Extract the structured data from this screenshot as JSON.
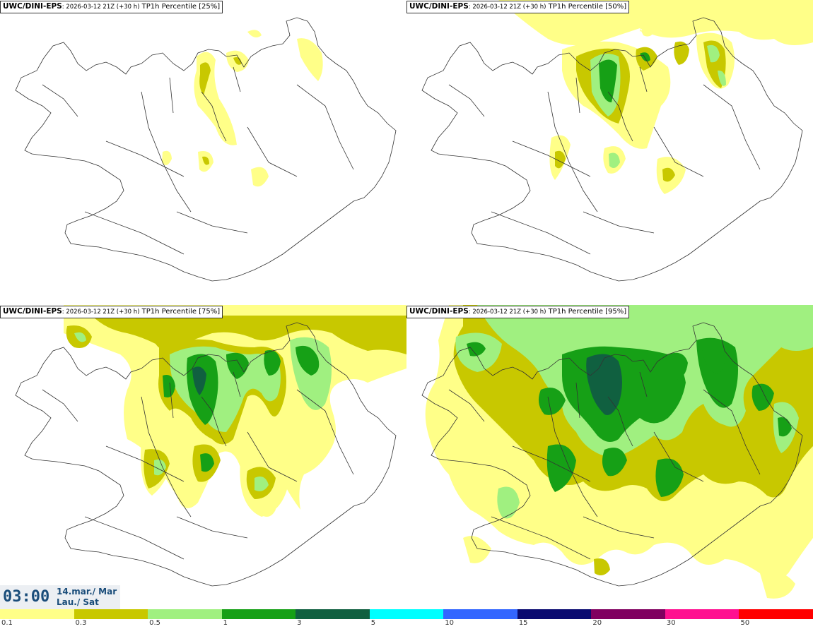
{
  "panels": [
    {
      "model": "UWC/DINI-EPS",
      "run": ": 2026-03-12 21Z (+30 h)",
      "product": " TP1h Percentile [25%]"
    },
    {
      "model": "UWC/DINI-EPS",
      "run": ": 2026-03-12 21Z (+30 h)",
      "product": " TP1h Percentile [50%]"
    },
    {
      "model": "UWC/DINI-EPS",
      "run": ": 2026-03-12 21Z (+30 h)",
      "product": " TP1h Percentile [75%]"
    },
    {
      "model": "UWC/DINI-EPS",
      "run": ": 2026-03-12 21Z (+30 h)",
      "product": " TP1h Percentile [95%]"
    }
  ],
  "time": {
    "clock": "03:00",
    "date_line1": "14.mar./ Mar",
    "date_line2": "Lau./ Sat"
  },
  "legend": {
    "labels": [
      "0.1",
      "0.3",
      "0.5",
      "1",
      "3",
      "5",
      "10",
      "15",
      "20",
      "30",
      "50"
    ],
    "colors": [
      "#ffff88",
      "#c8c800",
      "#a0f080",
      "#16a016",
      "#106040",
      "#00ffff",
      "#3366ff",
      "#0a0a70",
      "#800060",
      "#ff1090",
      "#ff0000"
    ]
  },
  "colors": {
    "c1": "#ffff88",
    "c2": "#c8c800",
    "c3": "#a0f080",
    "c4": "#16a016",
    "c5": "#106040",
    "timetext": "#1a4d7a"
  }
}
